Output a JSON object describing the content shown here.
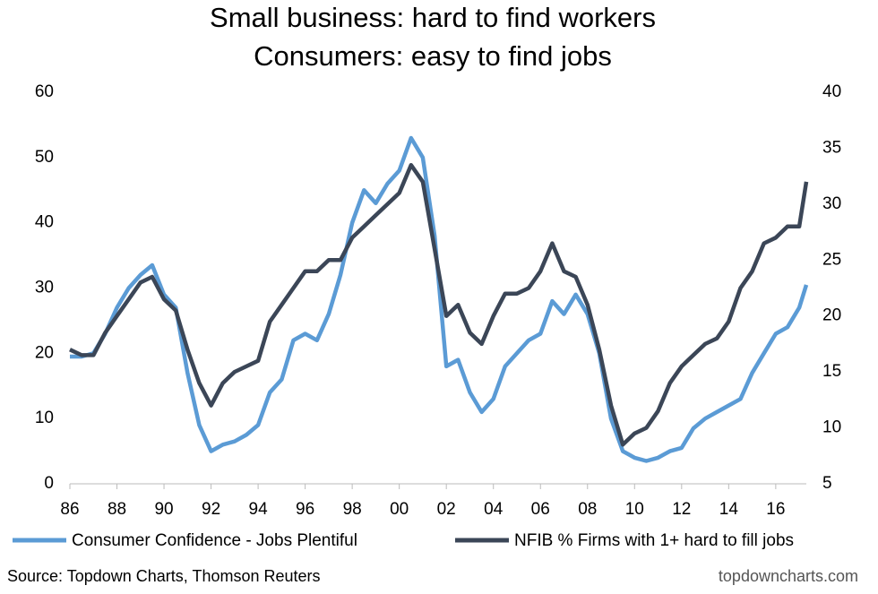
{
  "chart_data": {
    "type": "line",
    "title": "Small business: hard to find workers",
    "subtitle": "Consumers: easy to find jobs",
    "source": "Source: Topdown Charts, Thomson Reuters",
    "credit": "topdowncharts.com",
    "x": [
      1986,
      1986.5,
      1987,
      1987.5,
      1988,
      1988.5,
      1989,
      1989.5,
      1990,
      1990.5,
      1991,
      1991.5,
      1992,
      1992.5,
      1993,
      1993.5,
      1994,
      1994.5,
      1995,
      1995.5,
      1996,
      1996.5,
      1997,
      1997.5,
      1998,
      1998.5,
      1999,
      1999.5,
      2000,
      2000.5,
      2001,
      2001.5,
      2002,
      2002.5,
      2003,
      2003.5,
      2004,
      2004.5,
      2005,
      2005.5,
      2006,
      2006.5,
      2007,
      2007.5,
      2008,
      2008.5,
      2009,
      2009.5,
      2010,
      2010.5,
      2011,
      2011.5,
      2012,
      2012.5,
      2013,
      2013.5,
      2014,
      2014.5,
      2015,
      2015.5,
      2016,
      2016.5,
      2017,
      2017.3
    ],
    "series": [
      {
        "name": "Consumer Confidence - Jobs Plentiful",
        "color": "#5b9bd5",
        "axis": "y",
        "values": [
          19.5,
          19.5,
          20,
          23,
          27,
          30,
          32,
          33.5,
          29,
          27,
          17,
          9,
          5,
          6,
          6.5,
          7.5,
          9,
          14,
          16,
          22,
          23,
          22,
          26,
          32,
          40,
          45,
          43,
          46,
          48,
          53,
          50,
          38,
          18,
          19,
          14,
          11,
          13,
          18,
          20,
          22,
          23,
          28,
          26,
          29,
          26,
          20,
          10,
          5,
          4,
          3.5,
          4,
          5,
          5.5,
          8.5,
          10,
          11,
          12,
          13,
          17,
          20,
          23,
          24,
          27,
          30.5
        ]
      },
      {
        "name": "NFIB % Firms with 1+ hard to fill jobs",
        "color": "#3b4657",
        "axis": "y2",
        "values": [
          17,
          16.5,
          16.5,
          18.5,
          20,
          21.5,
          23,
          23.5,
          21.5,
          20.5,
          17,
          14,
          12,
          14,
          15,
          15.5,
          16,
          19.5,
          21,
          22.5,
          24,
          24,
          25,
          25,
          27,
          28,
          29,
          30,
          31,
          33.5,
          32,
          26,
          20,
          21,
          18.5,
          17.5,
          20,
          22,
          22,
          22.5,
          24,
          26.5,
          24,
          23.5,
          21,
          17,
          12,
          8.5,
          9.5,
          10,
          11.5,
          14,
          15.5,
          16.5,
          17.5,
          18,
          19.5,
          22.5,
          24,
          26.5,
          27,
          28,
          28,
          32
        ]
      }
    ],
    "xlim": [
      1986,
      2017.3
    ],
    "xticks": [
      {
        "value": 1986,
        "label": "86"
      },
      {
        "value": 1988,
        "label": "88"
      },
      {
        "value": 1990,
        "label": "90"
      },
      {
        "value": 1992,
        "label": "92"
      },
      {
        "value": 1994,
        "label": "94"
      },
      {
        "value": 1996,
        "label": "96"
      },
      {
        "value": 1998,
        "label": "98"
      },
      {
        "value": 2000,
        "label": "00"
      },
      {
        "value": 2002,
        "label": "02"
      },
      {
        "value": 2004,
        "label": "04"
      },
      {
        "value": 2006,
        "label": "06"
      },
      {
        "value": 2008,
        "label": "08"
      },
      {
        "value": 2010,
        "label": "10"
      },
      {
        "value": 2012,
        "label": "12"
      },
      {
        "value": 2014,
        "label": "14"
      },
      {
        "value": 2016,
        "label": "16"
      }
    ],
    "ylim": [
      0,
      60
    ],
    "yticks": [
      0,
      10,
      20,
      30,
      40,
      50,
      60
    ],
    "y2lim": [
      5,
      40
    ],
    "y2ticks": [
      5,
      10,
      15,
      20,
      25,
      30,
      35,
      40
    ],
    "legend": "bottom"
  }
}
